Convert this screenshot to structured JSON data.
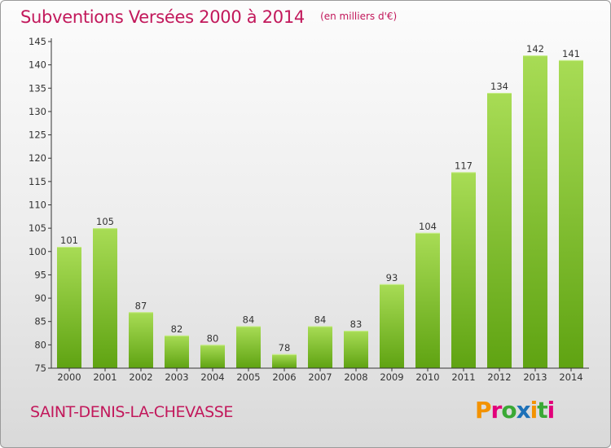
{
  "header": {
    "title": "Subventions Versées 2000 à 2014",
    "subtitle": "(en milliers d'€)"
  },
  "footer": {
    "commune": "SAINT-DENIS-LA-CHEVASSE",
    "logo_text": "Proxiti",
    "logo_colors": [
      "#f39200",
      "#e2007a",
      "#3aa935",
      "#1d71b8",
      "#f39200",
      "#3aa935",
      "#e2007a"
    ]
  },
  "colors": {
    "bar_light": "#a8dc55",
    "bar_dark": "#5fa312",
    "title": "#c2185b",
    "axis": "#333333"
  },
  "chart_data": {
    "type": "bar",
    "title": "Subventions Versées 2000 à 2014",
    "subtitle": "(en milliers d'€)",
    "xlabel": "",
    "ylabel": "",
    "categories": [
      "2000",
      "2001",
      "2002",
      "2003",
      "2004",
      "2005",
      "2006",
      "2007",
      "2008",
      "2009",
      "2010",
      "2011",
      "2012",
      "2013",
      "2014"
    ],
    "values": [
      101,
      105,
      87,
      82,
      80,
      84,
      78,
      84,
      83,
      93,
      104,
      117,
      134,
      142,
      141
    ],
    "ylim": [
      75,
      145
    ],
    "yticks": [
      75,
      80,
      85,
      90,
      95,
      100,
      105,
      110,
      115,
      120,
      125,
      130,
      135,
      140,
      145
    ],
    "grid": false,
    "legend": "none"
  }
}
